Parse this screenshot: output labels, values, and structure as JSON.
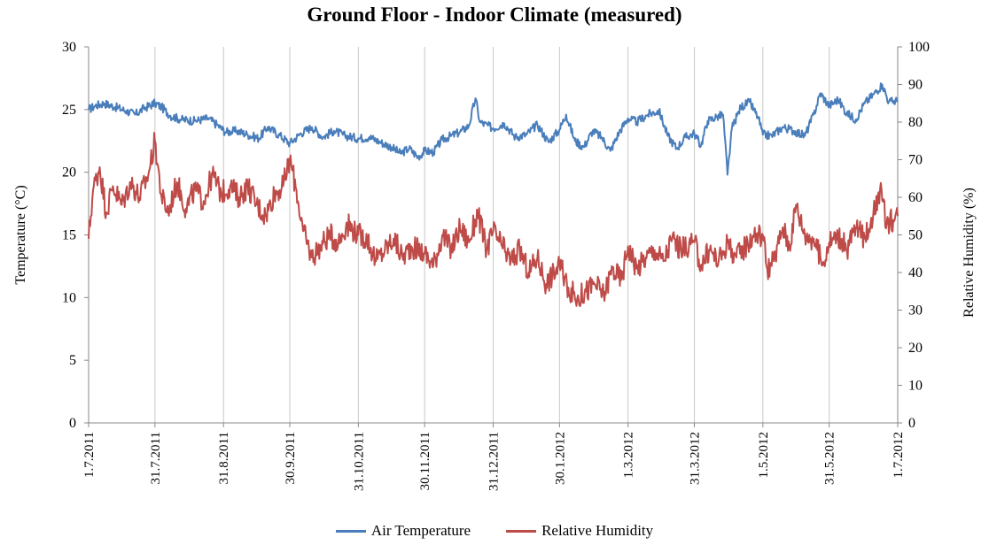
{
  "chart_data": {
    "type": "line",
    "title": "Ground Floor - Indoor Climate (measured)",
    "ylabel_left": "Temperature (°C)",
    "ylabel_right": "Relative Humidity (%)",
    "y_left_lim": [
      0,
      30
    ],
    "y_left_ticks": [
      "0",
      "5",
      "10",
      "15",
      "20",
      "25",
      "30"
    ],
    "y_right_lim": [
      0,
      100
    ],
    "y_right_ticks": [
      "0",
      "10",
      "20",
      "30",
      "40",
      "50",
      "60",
      "70",
      "80",
      "90",
      "100"
    ],
    "x_tick_labels": [
      "1.7.2011",
      "31.7.2011",
      "31.8.2011",
      "30.9.2011",
      "31.10.2011",
      "30.11.2011",
      "31.12.2011",
      "30.1.2012",
      "1.3.2012",
      "31.3.2012",
      "1.5.2012",
      "31.5.2012",
      "1.7.2012"
    ],
    "x_tick_dates": [
      "2011-07-01",
      "2011-07-31",
      "2011-08-31",
      "2011-09-30",
      "2011-10-31",
      "2011-11-30",
      "2011-12-31",
      "2012-01-30",
      "2012-03-01",
      "2012-03-31",
      "2012-05-01",
      "2012-05-31",
      "2012-07-01"
    ],
    "grid": "vertical",
    "legend_position": "bottom",
    "series": [
      {
        "name": "Air Temperature",
        "axis": "left",
        "color": "#4a7ebb",
        "points": [
          [
            "2011-07-01",
            25.0
          ],
          [
            "2011-07-04",
            25.3
          ],
          [
            "2011-07-08",
            25.5
          ],
          [
            "2011-07-13",
            25.2
          ],
          [
            "2011-07-18",
            24.9
          ],
          [
            "2011-07-22",
            24.6
          ],
          [
            "2011-07-26",
            25.1
          ],
          [
            "2011-07-31",
            25.5
          ],
          [
            "2011-08-03",
            25.2
          ],
          [
            "2011-08-07",
            24.5
          ],
          [
            "2011-08-12",
            24.2
          ],
          [
            "2011-08-18",
            24.1
          ],
          [
            "2011-08-24",
            24.3
          ],
          [
            "2011-08-28",
            23.8
          ],
          [
            "2011-09-01",
            23.2
          ],
          [
            "2011-09-06",
            23.3
          ],
          [
            "2011-09-11",
            23.0
          ],
          [
            "2011-09-16",
            22.7
          ],
          [
            "2011-09-20",
            23.6
          ],
          [
            "2011-09-25",
            23.0
          ],
          [
            "2011-09-30",
            22.3
          ],
          [
            "2011-10-05",
            23.1
          ],
          [
            "2011-10-10",
            23.6
          ],
          [
            "2011-10-15",
            22.8
          ],
          [
            "2011-10-20",
            23.3
          ],
          [
            "2011-10-25",
            22.9
          ],
          [
            "2011-10-31",
            22.7
          ],
          [
            "2011-11-05",
            22.8
          ],
          [
            "2011-11-10",
            22.4
          ],
          [
            "2011-11-15",
            22.0
          ],
          [
            "2011-11-19",
            21.5
          ],
          [
            "2011-11-23",
            21.9
          ],
          [
            "2011-11-27",
            21.2
          ],
          [
            "2011-11-30",
            21.7
          ],
          [
            "2011-12-04",
            21.6
          ],
          [
            "2011-12-08",
            22.6
          ],
          [
            "2011-12-12",
            22.9
          ],
          [
            "2011-12-16",
            23.2
          ],
          [
            "2011-12-20",
            23.7
          ],
          [
            "2011-12-23",
            25.9
          ],
          [
            "2011-12-25",
            24.0
          ],
          [
            "2011-12-31",
            23.5
          ],
          [
            "2012-01-05",
            23.9
          ],
          [
            "2012-01-10",
            22.8
          ],
          [
            "2012-01-15",
            23.0
          ],
          [
            "2012-01-20",
            23.8
          ],
          [
            "2012-01-25",
            22.4
          ],
          [
            "2012-01-30",
            23.4
          ],
          [
            "2012-02-02",
            24.6
          ],
          [
            "2012-02-06",
            22.5
          ],
          [
            "2012-02-10",
            22.0
          ],
          [
            "2012-02-14",
            23.3
          ],
          [
            "2012-02-18",
            22.8
          ],
          [
            "2012-02-22",
            21.7
          ],
          [
            "2012-02-26",
            23.2
          ],
          [
            "2012-03-01",
            24.3
          ],
          [
            "2012-03-05",
            24.0
          ],
          [
            "2012-03-10",
            24.6
          ],
          [
            "2012-03-15",
            24.9
          ],
          [
            "2012-03-19",
            22.9
          ],
          [
            "2012-03-23",
            21.9
          ],
          [
            "2012-03-27",
            22.8
          ],
          [
            "2012-03-31",
            23.1
          ],
          [
            "2012-04-03",
            22.1
          ],
          [
            "2012-04-06",
            24.1
          ],
          [
            "2012-04-10",
            24.4
          ],
          [
            "2012-04-13",
            24.6
          ],
          [
            "2012-04-15",
            19.8
          ],
          [
            "2012-04-17",
            23.5
          ],
          [
            "2012-04-21",
            25.2
          ],
          [
            "2012-04-25",
            25.6
          ],
          [
            "2012-04-29",
            24.3
          ],
          [
            "2012-05-01",
            23.0
          ],
          [
            "2012-05-05",
            22.9
          ],
          [
            "2012-05-10",
            23.6
          ],
          [
            "2012-05-15",
            23.3
          ],
          [
            "2012-05-20",
            22.9
          ],
          [
            "2012-05-24",
            24.6
          ],
          [
            "2012-05-27",
            26.3
          ],
          [
            "2012-05-31",
            25.3
          ],
          [
            "2012-06-04",
            25.8
          ],
          [
            "2012-06-08",
            24.7
          ],
          [
            "2012-06-12",
            24.2
          ],
          [
            "2012-06-16",
            25.5
          ],
          [
            "2012-06-20",
            26.2
          ],
          [
            "2012-06-24",
            27.0
          ],
          [
            "2012-06-27",
            25.6
          ],
          [
            "2012-07-01",
            25.7
          ]
        ]
      },
      {
        "name": "Relative Humidity",
        "axis": "right",
        "color": "#be4b48",
        "points": [
          [
            "2011-07-01",
            49
          ],
          [
            "2011-07-03",
            62
          ],
          [
            "2011-07-06",
            68
          ],
          [
            "2011-07-09",
            56
          ],
          [
            "2011-07-12",
            63
          ],
          [
            "2011-07-16",
            58
          ],
          [
            "2011-07-20",
            64
          ],
          [
            "2011-07-24",
            60
          ],
          [
            "2011-07-28",
            66
          ],
          [
            "2011-07-31",
            75
          ],
          [
            "2011-08-03",
            60
          ],
          [
            "2011-08-06",
            56
          ],
          [
            "2011-08-10",
            64
          ],
          [
            "2011-08-14",
            57
          ],
          [
            "2011-08-18",
            62
          ],
          [
            "2011-08-22",
            59
          ],
          [
            "2011-08-26",
            66
          ],
          [
            "2011-08-30",
            61
          ],
          [
            "2011-09-03",
            63
          ],
          [
            "2011-09-07",
            60
          ],
          [
            "2011-09-11",
            63
          ],
          [
            "2011-09-15",
            58
          ],
          [
            "2011-09-19",
            55
          ],
          [
            "2011-09-23",
            61
          ],
          [
            "2011-09-27",
            63
          ],
          [
            "2011-09-30",
            70
          ],
          [
            "2011-10-03",
            62
          ],
          [
            "2011-10-06",
            51
          ],
          [
            "2011-10-10",
            44
          ],
          [
            "2011-10-14",
            47
          ],
          [
            "2011-10-18",
            50
          ],
          [
            "2011-10-22",
            48
          ],
          [
            "2011-10-26",
            53
          ],
          [
            "2011-10-31",
            50
          ],
          [
            "2011-11-04",
            49
          ],
          [
            "2011-11-08",
            43
          ],
          [
            "2011-11-12",
            46
          ],
          [
            "2011-11-16",
            49
          ],
          [
            "2011-11-20",
            44
          ],
          [
            "2011-11-24",
            47
          ],
          [
            "2011-11-30",
            45
          ],
          [
            "2011-12-04",
            42
          ],
          [
            "2011-12-08",
            50
          ],
          [
            "2011-12-12",
            46
          ],
          [
            "2011-12-16",
            52
          ],
          [
            "2011-12-20",
            48
          ],
          [
            "2011-12-24",
            56
          ],
          [
            "2011-12-28",
            46
          ],
          [
            "2011-12-31",
            51
          ],
          [
            "2012-01-04",
            47
          ],
          [
            "2012-01-08",
            43
          ],
          [
            "2012-01-12",
            46
          ],
          [
            "2012-01-16",
            40
          ],
          [
            "2012-01-20",
            44
          ],
          [
            "2012-01-24",
            37
          ],
          [
            "2012-01-30",
            42
          ],
          [
            "2012-02-03",
            36
          ],
          [
            "2012-02-07",
            33
          ],
          [
            "2012-02-11",
            35
          ],
          [
            "2012-02-15",
            37
          ],
          [
            "2012-02-19",
            34
          ],
          [
            "2012-02-23",
            41
          ],
          [
            "2012-02-27",
            38
          ],
          [
            "2012-03-01",
            47
          ],
          [
            "2012-03-05",
            41
          ],
          [
            "2012-03-09",
            44
          ],
          [
            "2012-03-13",
            46
          ],
          [
            "2012-03-17",
            43
          ],
          [
            "2012-03-21",
            49
          ],
          [
            "2012-03-25",
            46
          ],
          [
            "2012-03-31",
            48
          ],
          [
            "2012-04-03",
            42
          ],
          [
            "2012-04-07",
            46
          ],
          [
            "2012-04-11",
            43
          ],
          [
            "2012-04-15",
            48
          ],
          [
            "2012-04-19",
            44
          ],
          [
            "2012-04-23",
            47
          ],
          [
            "2012-04-27",
            50
          ],
          [
            "2012-05-01",
            50
          ],
          [
            "2012-05-03",
            41
          ],
          [
            "2012-05-06",
            43
          ],
          [
            "2012-05-10",
            52
          ],
          [
            "2012-05-13",
            47
          ],
          [
            "2012-05-16",
            58
          ],
          [
            "2012-05-20",
            50
          ],
          [
            "2012-05-24",
            49
          ],
          [
            "2012-05-28",
            42
          ],
          [
            "2012-05-31",
            48
          ],
          [
            "2012-06-04",
            50
          ],
          [
            "2012-06-08",
            46
          ],
          [
            "2012-06-12",
            52
          ],
          [
            "2012-06-16",
            49
          ],
          [
            "2012-06-20",
            56
          ],
          [
            "2012-06-23",
            62
          ],
          [
            "2012-06-26",
            53
          ],
          [
            "2012-06-29",
            54
          ],
          [
            "2012-07-01",
            55
          ]
        ]
      }
    ]
  }
}
